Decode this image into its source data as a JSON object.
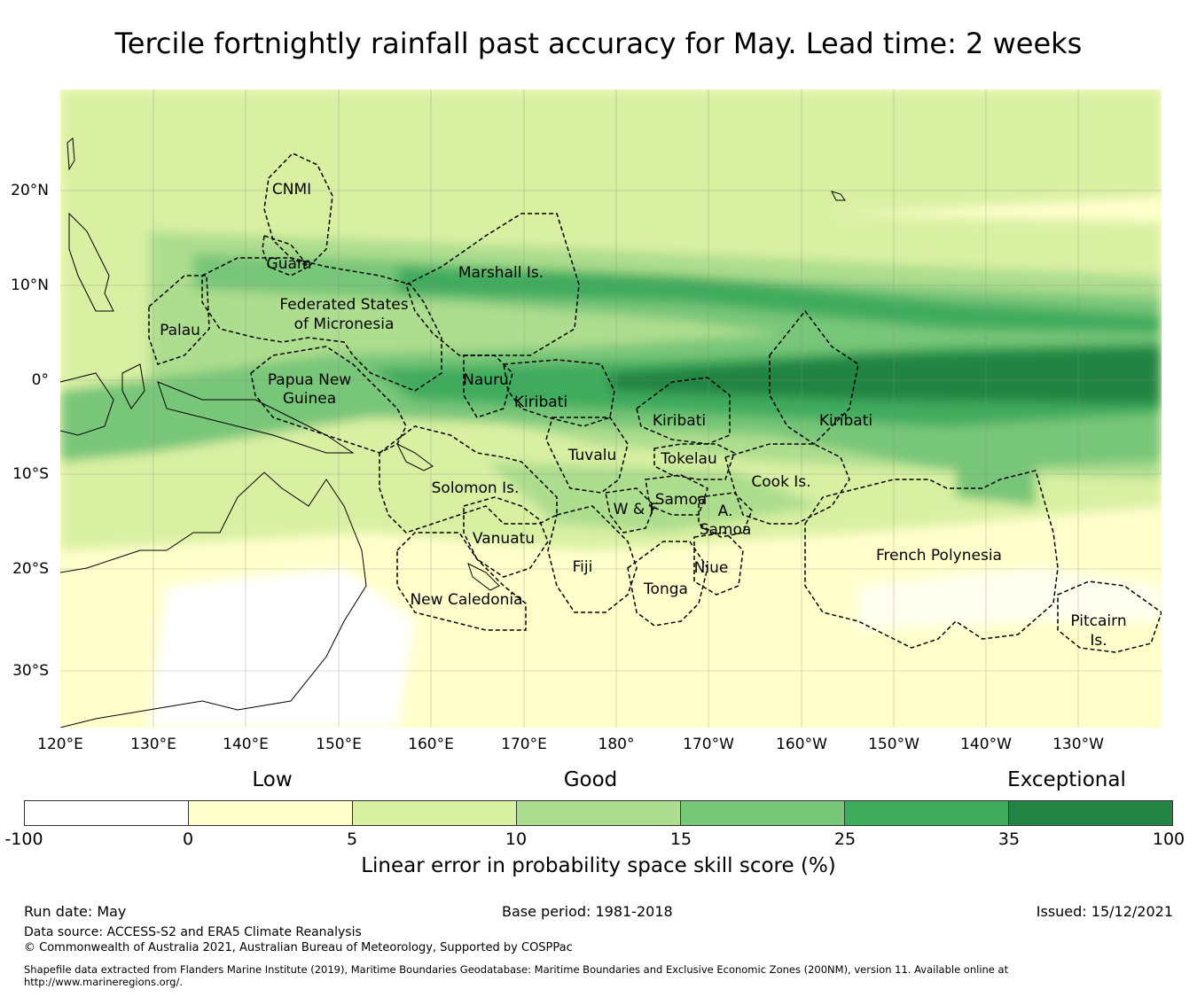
{
  "title": "Tercile fortnightly rainfall past accuracy for May. Lead time: 2 weeks",
  "map": {
    "lon_ticks": [
      "120°E",
      "130°E",
      "140°E",
      "150°E",
      "160°E",
      "170°E",
      "180°",
      "170°W",
      "160°W",
      "150°W",
      "140°W",
      "130°W"
    ],
    "lat_ticks": [
      "20°N",
      "10°N",
      "0°",
      "10°S",
      "20°S",
      "30°S"
    ],
    "regions": [
      "CNMI",
      "Guam",
      "Marshall Is.",
      "Federated States",
      "of Micronesia",
      "Palau",
      "Papua New",
      "Guinea",
      "Nauru",
      "Kiribati",
      "Kiribati",
      "Kiribati",
      "Tuvalu",
      "Tokelau",
      "Solomon Is.",
      "Cook Is.",
      "Samoa",
      "W & F",
      "A.",
      "Samoa",
      "Vanuatu",
      "Fiji",
      "Niue",
      "Tonga",
      "French Polynesia",
      "New Caledonia",
      "Pitcairn",
      "Is."
    ]
  },
  "legend": {
    "categories": [
      "Low",
      "Good",
      "Exceptional"
    ],
    "ticks": [
      "-100",
      "0",
      "5",
      "10",
      "15",
      "25",
      "35",
      "100"
    ],
    "colors": [
      "#ffffff",
      "#ffffcc",
      "#d9f0a3",
      "#addd8e",
      "#78c679",
      "#41ab5d",
      "#238443"
    ],
    "label": "Linear error in probability space skill score (%)"
  },
  "footer": {
    "run_date": "Run date: May",
    "base_period": "Base period: 1981-2018",
    "issued": "Issued: 15/12/2021",
    "data_source": "Data source: ACCESS-S2 and ERA5 Climate Reanalysis",
    "copyright": "© Commonwealth of Australia 2021, Australian Bureau of Meteorology, Supported by COSPPac",
    "shapefile_note": "Shapefile data extracted from Flanders Marine Institute (2019), Maritime Boundaries Geodatabase: Maritime Boundaries and Exclusive Economic Zones (200NM), version 11. Available online at http://www.marineregions.org/."
  }
}
